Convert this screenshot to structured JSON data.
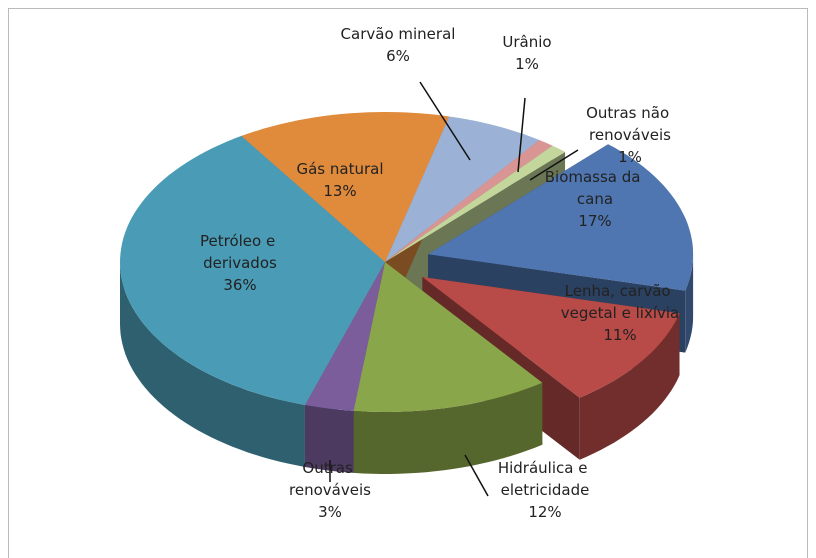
{
  "chart_data": {
    "type": "pie3d",
    "categories": [
      "Carvão mineral",
      "Urânio",
      "Outras não renováveis",
      "Biomassa da cana",
      "Lenha, carvão vegetal e lixívia",
      "Hidráulica e eletricidade",
      "Outras renováveis",
      "Petróleo e derivados",
      "Gás natural"
    ],
    "values": [
      6,
      1,
      1,
      17,
      11,
      12,
      3,
      36,
      13
    ],
    "value_labels": [
      "6%",
      "1%",
      "1%",
      "17%",
      "11%",
      "12%",
      "3%",
      "36%",
      "13%"
    ],
    "colors": [
      "#9bb1d6",
      "#d99594",
      "#c3d69b",
      "#4f76b0",
      "#b84a47",
      "#8aa64a",
      "#7b5d9c",
      "#4a9bb5",
      "#e08a3c"
    ]
  }
}
